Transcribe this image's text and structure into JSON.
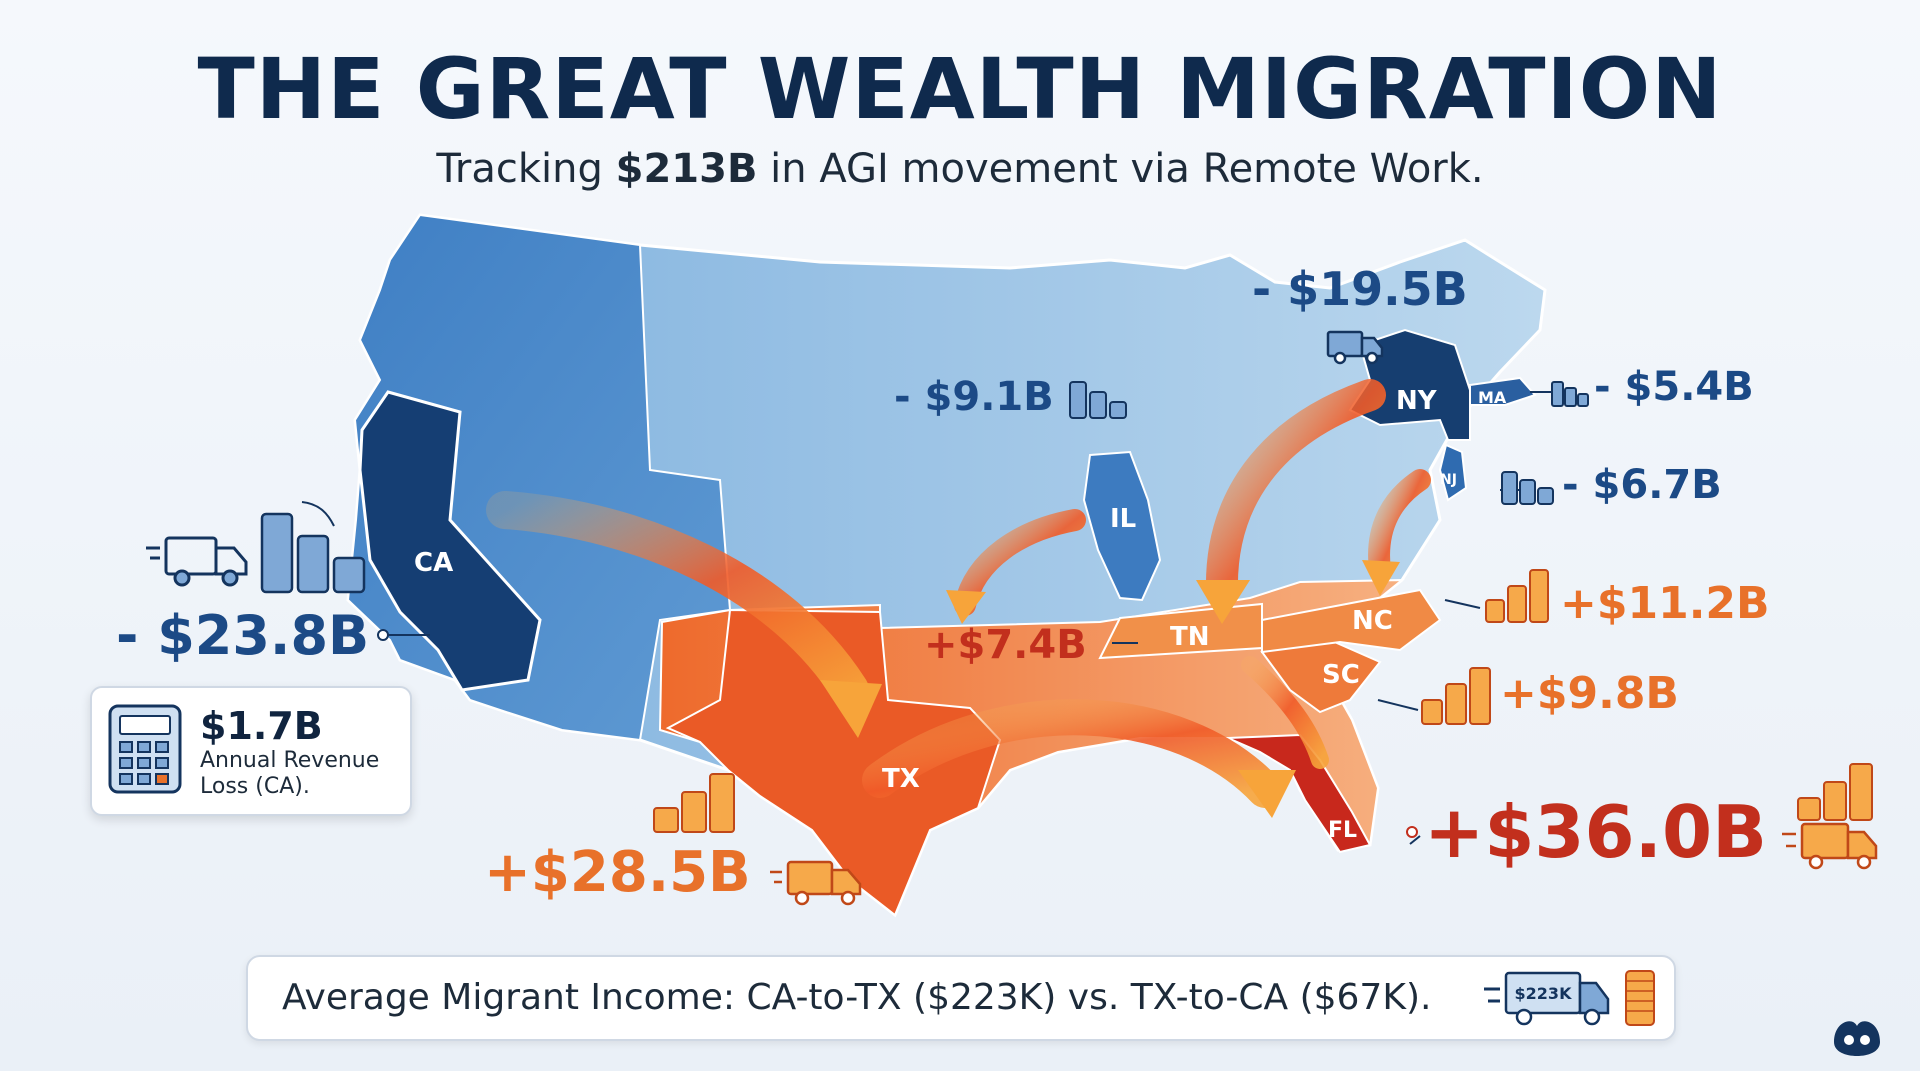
{
  "title": "THE GREAT WEALTH MIGRATION",
  "subtitle": {
    "prefix": "Tracking ",
    "highlight": "$213B",
    "suffix": " in AGI movement via Remote Work."
  },
  "states": {
    "ca": "CA",
    "tx": "TX",
    "fl": "FL",
    "il": "IL",
    "tn": "TN",
    "nc": "NC",
    "sc": "SC",
    "ny": "NY",
    "ma": "MA",
    "nj": "NJ"
  },
  "flows": {
    "ca": "- $23.8B",
    "ny": "- $19.5B",
    "il": "- $9.1B",
    "ma": "- $5.4B",
    "nj": "- $6.7B",
    "tn": "+$7.4B",
    "nc": "+$11.2B",
    "sc": "+$9.8B",
    "tx": "+$28.5B",
    "fl": "+$36.0B"
  },
  "revenue_loss": {
    "value": "$1.7B",
    "description": "Annual Revenue Loss (CA)."
  },
  "footer": {
    "text": "Average Migrant Income: CA-to-TX ($223K) vs. TX-to-CA ($67K).",
    "truck_label": "$223K"
  },
  "colors": {
    "outflow": "#1c4a86",
    "inflow": "#e8712a",
    "top_inflow": "#c22f1d",
    "arrow": "#f05a28"
  },
  "icons": [
    "truck-icon",
    "coin-stack-icon",
    "calculator-icon",
    "logo-icon"
  ]
}
